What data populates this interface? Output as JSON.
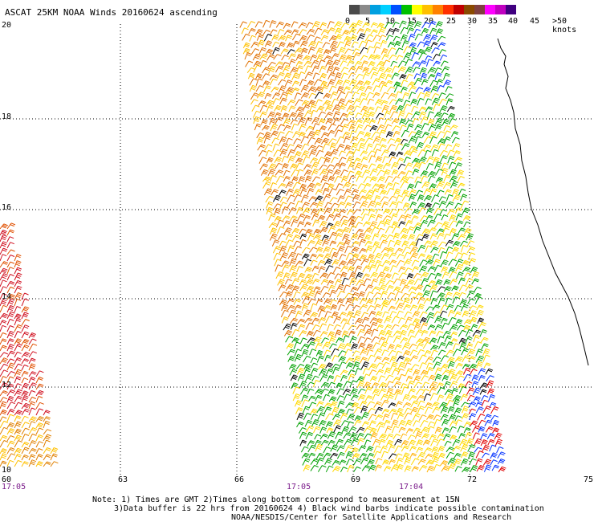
{
  "title": "ASCAT 25KM NOAA Winds 20160624 ascending",
  "legend": {
    "colors": [
      "#4a4a4a",
      "#8a8a8a",
      "#00a0e0",
      "#00d0ff",
      "#0050ff",
      "#00c000",
      "#ffff00",
      "#ffc000",
      "#ff8000",
      "#ff3000",
      "#c00000",
      "#8a4a00",
      "#804040",
      "#ff00ff",
      "#c000c0",
      "#400080"
    ],
    "labels": [
      "0",
      "5",
      "10",
      "15",
      "20",
      "25",
      "30",
      "35",
      "40",
      "45",
      ">50 knots"
    ]
  },
  "axes": {
    "lat_labels": [
      "20",
      "18",
      "16",
      "14",
      "12",
      "10"
    ],
    "lon_labels": [
      "60",
      "63",
      "66",
      "69",
      "72",
      "75"
    ]
  },
  "times": [
    "17:05",
    "17:05",
    "17:04"
  ],
  "note_line1": "Note: 1) Times are GMT 2)Times along bottom correspond to measurement at 15N",
  "note_line2": "3)Data buffer is 22 hrs from 20160624 4) Black wind barbs indicate possible contamination",
  "credit": "NOAA/NESDIS/Center for Satellite Applications and Research",
  "colors": {
    "time_label": "#7a1a8a",
    "gridline": "#000000"
  }
}
